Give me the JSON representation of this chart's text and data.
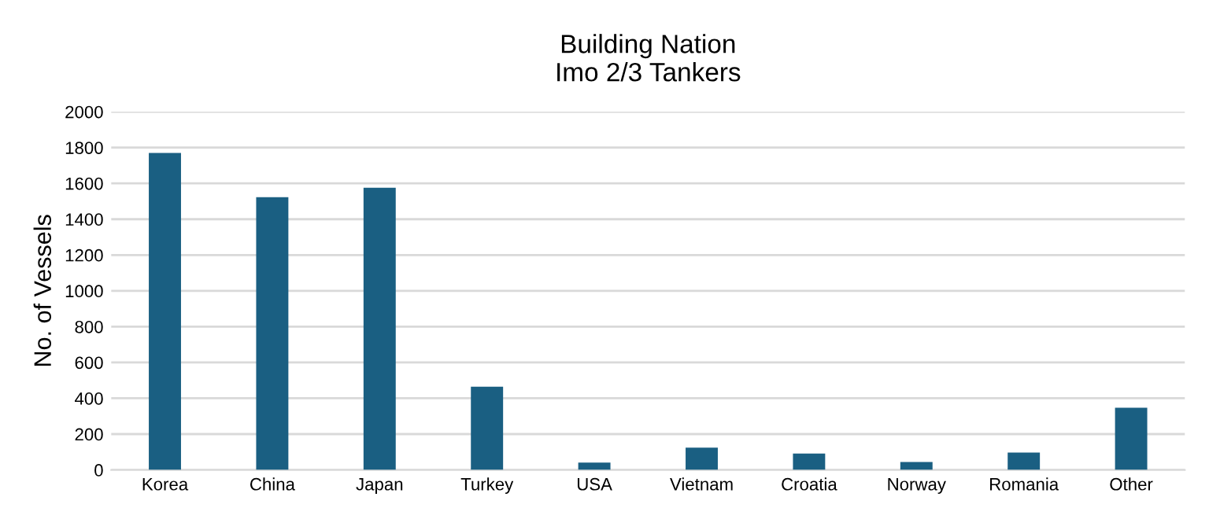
{
  "chart_data": {
    "type": "bar",
    "title": "Building Nation\nImo 2/3 Tankers",
    "ylabel": "No. of Vessels",
    "categories": [
      "Korea",
      "China",
      "Japan",
      "Turkey",
      "USA",
      "Vietnam",
      "Croatia",
      "Norway",
      "Romania",
      "Other"
    ],
    "values": [
      1770,
      1523,
      1576,
      465,
      41,
      124,
      91,
      44,
      97,
      347
    ],
    "color": "#1a5f82",
    "ylim": [
      0,
      2000
    ],
    "yticks": [
      0,
      200,
      400,
      600,
      800,
      1000,
      1200,
      1400,
      1600,
      1800,
      2000
    ],
    "grid": "y"
  }
}
